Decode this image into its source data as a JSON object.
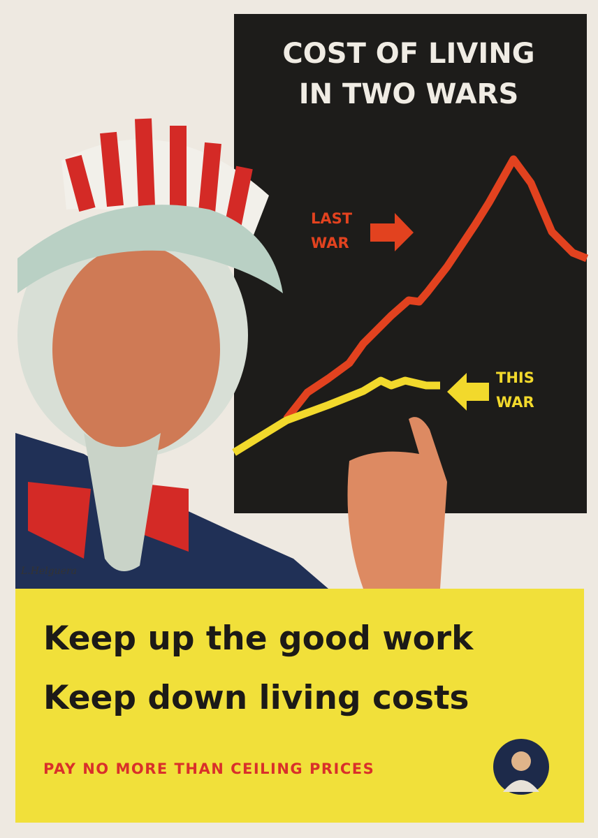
{
  "header": {
    "title_lines": [
      "COST OF LIVING",
      "IN TWO WARS"
    ]
  },
  "chart_labels": {
    "last_war": [
      "LAST",
      "WAR"
    ],
    "this_war": [
      "THIS",
      "WAR"
    ]
  },
  "slogan": {
    "lines": [
      "Keep up the good work",
      "Keep down living costs"
    ],
    "subline": "PAY NO MORE THAN CEILING PRICES"
  },
  "signature": "L.Helguera"
}
